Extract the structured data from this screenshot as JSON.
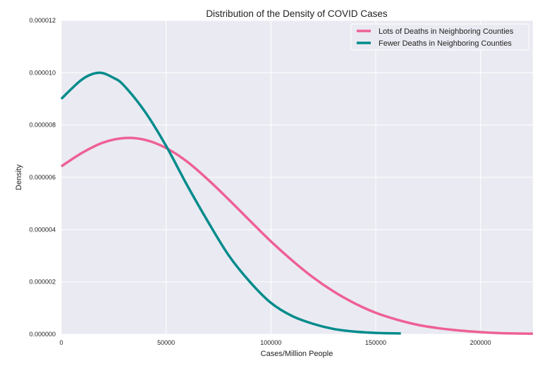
{
  "chart_data": {
    "type": "line",
    "title": "Distribution of the Density of COVID Cases",
    "xlabel": "Cases/Million People",
    "ylabel": "Density",
    "xlim": [
      0,
      225000
    ],
    "ylim": [
      0,
      1.2e-05
    ],
    "xticks": [
      0,
      50000,
      100000,
      150000,
      200000
    ],
    "xtick_labels": [
      "0",
      "50000",
      "100000",
      "150000",
      "200000"
    ],
    "yticks": [
      0,
      2e-06,
      4e-06,
      6e-06,
      8e-06,
      1e-05,
      1.2e-05
    ],
    "ytick_labels": [
      "0.000000",
      "0.000002",
      "0.000004",
      "0.000006",
      "0.000008",
      "0.000010",
      "0.000012"
    ],
    "grid": true,
    "legend_position": "top-right",
    "series": [
      {
        "name": "Lots of Deaths in Neighboring Counties",
        "color": "#ee6095",
        "x": [
          0,
          10000,
          20000,
          30000,
          40000,
          50000,
          60000,
          70000,
          80000,
          90000,
          100000,
          110000,
          120000,
          130000,
          140000,
          150000,
          160000,
          170000,
          180000,
          190000,
          200000,
          210000,
          225000
        ],
        "y": [
          6.42e-06,
          6.94e-06,
          7.33e-06,
          7.5e-06,
          7.43e-06,
          7.12e-06,
          6.6e-06,
          5.91e-06,
          5.14e-06,
          4.34e-06,
          3.55e-06,
          2.83e-06,
          2.18e-06,
          1.63e-06,
          1.18e-06,
          8.2e-07,
          5.6e-07,
          3.6e-07,
          2.3e-07,
          1.4e-07,
          8e-08,
          4e-08,
          2e-08
        ]
      },
      {
        "name": "Fewer Deaths in Neighboring Counties",
        "color": "#008b8b",
        "x": [
          0,
          10000,
          18000,
          25000,
          30000,
          40000,
          50000,
          60000,
          70000,
          80000,
          90000,
          100000,
          110000,
          120000,
          130000,
          140000,
          150000,
          162000
        ],
        "y": [
          9e-06,
          9.75e-06,
          1e-05,
          9.8e-06,
          9.5e-06,
          8.5e-06,
          7.2e-06,
          5.7e-06,
          4.3e-06,
          3e-06,
          2e-06,
          1.2e-06,
          7e-07,
          4e-07,
          2e-07,
          1e-07,
          5e-08,
          3e-08
        ]
      }
    ]
  }
}
